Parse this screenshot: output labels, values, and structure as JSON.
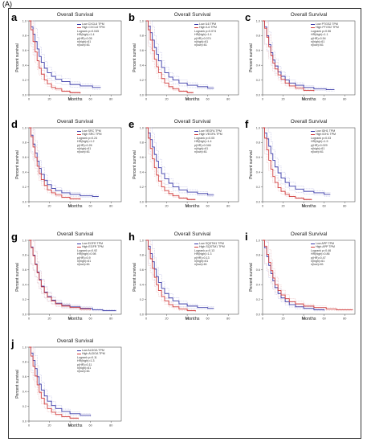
{
  "figure_label": "(A)",
  "colors": {
    "low": "#3a3aa8",
    "high": "#d03a3a",
    "ci_low": "#b8b8e0",
    "ci_high": "#e8b8b8"
  },
  "chart_data": [
    {
      "panel": "a",
      "type": "line",
      "title": "Overall Survival",
      "xlabel": "Months",
      "ylabel": "Percent survival",
      "xlim": [
        0,
        90
      ],
      "ylim": [
        0,
        1.0
      ],
      "xticks": [
        0,
        20,
        40,
        60,
        80
      ],
      "yticks": [
        0.0,
        0.2,
        0.4,
        0.6,
        0.8,
        1.0
      ],
      "legend": [
        "Low CXCL8 TPM",
        "High CXCL8 TPM",
        "Logrank p=0.045",
        "HR(high)=1.4",
        "p(HR)=0.05",
        "n(high)=61",
        "n(low)=61"
      ],
      "series": [
        {
          "name": "Low CXCL8 TPM",
          "x": [
            0,
            2,
            4,
            6,
            8,
            10,
            12,
            15,
            18,
            22,
            26,
            32,
            40,
            50,
            62,
            70
          ],
          "y": [
            1.0,
            0.92,
            0.82,
            0.72,
            0.62,
            0.52,
            0.44,
            0.36,
            0.3,
            0.25,
            0.21,
            0.18,
            0.14,
            0.12,
            0.1,
            0.1
          ]
        },
        {
          "name": "High CXCL8 TPM",
          "x": [
            0,
            2,
            4,
            6,
            8,
            10,
            12,
            15,
            18,
            22,
            26,
            32,
            40,
            50
          ],
          "y": [
            1.0,
            0.88,
            0.72,
            0.58,
            0.46,
            0.36,
            0.28,
            0.2,
            0.15,
            0.1,
            0.08,
            0.05,
            0.03,
            0.02
          ]
        }
      ]
    },
    {
      "panel": "b",
      "type": "line",
      "title": "Overall Survival",
      "xlabel": "Months",
      "ylabel": "Percent survival",
      "xlim": [
        0,
        90
      ],
      "ylim": [
        0,
        1.0
      ],
      "xticks": [
        0,
        20,
        40,
        60,
        80
      ],
      "yticks": [
        0.0,
        0.2,
        0.4,
        0.6,
        0.8,
        1.0
      ],
      "legend": [
        "Low IL6 TPM",
        "High IL6 TPM",
        "Logrank p=0.074",
        "HR(high)=1.4",
        "p(HR)=0.074",
        "n(high)=61",
        "n(low)=61"
      ],
      "series": [
        {
          "name": "Low IL6 TPM",
          "x": [
            0,
            2,
            4,
            6,
            8,
            10,
            12,
            15,
            18,
            22,
            26,
            32,
            40,
            50,
            60,
            66
          ],
          "y": [
            1.0,
            0.93,
            0.84,
            0.74,
            0.64,
            0.55,
            0.46,
            0.37,
            0.3,
            0.24,
            0.2,
            0.16,
            0.13,
            0.11,
            0.09,
            0.09
          ]
        },
        {
          "name": "High IL6 TPM",
          "x": [
            0,
            2,
            4,
            6,
            8,
            10,
            12,
            15,
            18,
            22,
            26,
            32,
            40,
            46
          ],
          "y": [
            1.0,
            0.88,
            0.74,
            0.6,
            0.48,
            0.38,
            0.3,
            0.22,
            0.16,
            0.11,
            0.08,
            0.05,
            0.03,
            0.03
          ]
        }
      ]
    },
    {
      "panel": "c",
      "type": "line",
      "title": "Overall Survival",
      "xlabel": "Months",
      "ylabel": "Percent survival",
      "xlim": [
        0,
        90
      ],
      "ylim": [
        0,
        1.0
      ],
      "xticks": [
        0,
        20,
        40,
        60,
        80
      ],
      "yticks": [
        0.0,
        0.2,
        0.4,
        0.6,
        0.8,
        1.0
      ],
      "legend": [
        "Low PTGS2 TPM",
        "High PTGS2 TPM",
        "Logrank p=0.56",
        "HR(high)=1.1",
        "p(HR)=0.54",
        "n(high)=61",
        "n(low)=61"
      ],
      "series": [
        {
          "name": "Low PTGS2 TPM",
          "x": [
            0,
            2,
            4,
            6,
            8,
            10,
            12,
            15,
            18,
            22,
            26,
            32,
            40,
            50,
            62,
            70
          ],
          "y": [
            1.0,
            0.92,
            0.8,
            0.68,
            0.57,
            0.47,
            0.39,
            0.31,
            0.25,
            0.2,
            0.16,
            0.13,
            0.1,
            0.08,
            0.07,
            0.07
          ]
        },
        {
          "name": "High PTGS2 TPM",
          "x": [
            0,
            2,
            4,
            6,
            8,
            10,
            12,
            15,
            18,
            22,
            26,
            32,
            40,
            50
          ],
          "y": [
            1.0,
            0.9,
            0.78,
            0.65,
            0.53,
            0.43,
            0.35,
            0.27,
            0.21,
            0.16,
            0.12,
            0.09,
            0.06,
            0.05
          ]
        }
      ]
    },
    {
      "panel": "d",
      "type": "line",
      "title": "Overall Survival",
      "xlabel": "Months",
      "ylabel": "Percent survival",
      "xlim": [
        0,
        90
      ],
      "ylim": [
        0,
        1.0
      ],
      "xticks": [
        0,
        20,
        40,
        60,
        80
      ],
      "yticks": [
        0.0,
        0.2,
        0.4,
        0.6,
        0.8,
        1.0
      ],
      "legend": [
        "Low SRC TPM",
        "High SRC TPM",
        "Logrank p=0.24",
        "HR(high)=1.2",
        "p(HR)=0.26",
        "n(high)=61",
        "n(low)=61"
      ],
      "series": [
        {
          "name": "Low SRC TPM",
          "x": [
            0,
            2,
            4,
            6,
            8,
            10,
            12,
            15,
            18,
            22,
            26,
            32,
            40,
            50,
            62,
            68
          ],
          "y": [
            1.0,
            0.9,
            0.78,
            0.66,
            0.55,
            0.45,
            0.37,
            0.29,
            0.23,
            0.18,
            0.15,
            0.12,
            0.1,
            0.08,
            0.07,
            0.07
          ]
        },
        {
          "name": "High SRC TPM",
          "x": [
            0,
            2,
            4,
            6,
            8,
            10,
            12,
            15,
            18,
            22,
            26,
            32,
            40,
            50
          ],
          "y": [
            1.0,
            0.88,
            0.74,
            0.6,
            0.48,
            0.38,
            0.3,
            0.22,
            0.16,
            0.12,
            0.09,
            0.06,
            0.04,
            0.03
          ]
        }
      ]
    },
    {
      "panel": "e",
      "type": "line",
      "title": "Overall Survival",
      "xlabel": "Months",
      "ylabel": "Percent survival",
      "xlim": [
        0,
        90
      ],
      "ylim": [
        0,
        1.0
      ],
      "xticks": [
        0,
        20,
        40,
        60,
        80
      ],
      "yticks": [
        0.0,
        0.2,
        0.4,
        0.6,
        0.8,
        1.0
      ],
      "legend": [
        "Low VEGFA TPM",
        "High VEGFA TPM",
        "Logrank p=0.05",
        "HR(high)=1.4",
        "p(HR)=0.046",
        "n(high)=61",
        "n(low)=61"
      ],
      "series": [
        {
          "name": "Low VEGFA TPM",
          "x": [
            0,
            2,
            4,
            6,
            8,
            10,
            12,
            15,
            18,
            22,
            26,
            32,
            40,
            50,
            60,
            66
          ],
          "y": [
            1.0,
            0.93,
            0.84,
            0.74,
            0.64,
            0.55,
            0.46,
            0.38,
            0.31,
            0.25,
            0.2,
            0.16,
            0.13,
            0.11,
            0.09,
            0.09
          ]
        },
        {
          "name": "High VEGFA TPM",
          "x": [
            0,
            2,
            4,
            6,
            8,
            10,
            12,
            15,
            18,
            22,
            26,
            32,
            40,
            48
          ],
          "y": [
            1.0,
            0.86,
            0.72,
            0.58,
            0.46,
            0.36,
            0.28,
            0.2,
            0.15,
            0.11,
            0.08,
            0.05,
            0.03,
            0.03
          ]
        }
      ]
    },
    {
      "panel": "f",
      "type": "line",
      "title": "Overall Survival",
      "xlabel": "Months",
      "ylabel": "Percent survival",
      "xlim": [
        0,
        90
      ],
      "ylim": [
        0,
        1.0
      ],
      "xticks": [
        0,
        20,
        40,
        60,
        80
      ],
      "yticks": [
        0.0,
        0.2,
        0.4,
        0.6,
        0.8,
        1.0
      ],
      "legend": [
        "Low IDH1 TPM",
        "High IDH1 TPM",
        "Logrank p=0.03",
        "HR(high)=1.5",
        "p(HR)=0.029",
        "n(high)=61",
        "n(low)=61"
      ],
      "series": [
        {
          "name": "Low IDH1 TPM",
          "x": [
            0,
            2,
            4,
            6,
            8,
            10,
            12,
            15,
            18,
            22,
            26,
            32,
            40,
            50,
            60,
            66
          ],
          "y": [
            1.0,
            0.93,
            0.85,
            0.75,
            0.65,
            0.56,
            0.47,
            0.39,
            0.32,
            0.26,
            0.21,
            0.17,
            0.14,
            0.12,
            0.1,
            0.1
          ]
        },
        {
          "name": "High IDH1 TPM",
          "x": [
            0,
            2,
            4,
            6,
            8,
            10,
            12,
            15,
            18,
            22,
            26,
            32,
            40,
            48
          ],
          "y": [
            1.0,
            0.86,
            0.7,
            0.56,
            0.44,
            0.34,
            0.26,
            0.19,
            0.14,
            0.1,
            0.07,
            0.05,
            0.03,
            0.03
          ]
        }
      ]
    },
    {
      "panel": "g",
      "type": "line",
      "title": "Overall Survival",
      "xlabel": "Months",
      "ylabel": "Percent survival",
      "xlim": [
        0,
        90
      ],
      "ylim": [
        0,
        1.0
      ],
      "xticks": [
        0,
        20,
        40,
        60,
        80
      ],
      "yticks": [
        0.0,
        0.2,
        0.4,
        0.6,
        0.8,
        1.0
      ],
      "legend": [
        "Low EGFR TPM",
        "High EGFR TPM",
        "Logrank p=0.92",
        "HR(high)=0.98",
        "p(HR)=0.9",
        "n(high)=61",
        "n(low)=61"
      ],
      "series": [
        {
          "name": "Low EGFR TPM",
          "x": [
            0,
            2,
            4,
            6,
            8,
            10,
            12,
            15,
            18,
            22,
            26,
            32,
            40,
            50,
            62,
            72,
            85
          ],
          "y": [
            1.0,
            0.91,
            0.8,
            0.68,
            0.57,
            0.47,
            0.38,
            0.3,
            0.24,
            0.19,
            0.15,
            0.12,
            0.1,
            0.08,
            0.06,
            0.05,
            0.05
          ]
        },
        {
          "name": "High EGFR TPM",
          "x": [
            0,
            2,
            4,
            6,
            8,
            10,
            12,
            15,
            18,
            22,
            26,
            32,
            40,
            50,
            60
          ],
          "y": [
            1.0,
            0.9,
            0.79,
            0.67,
            0.56,
            0.46,
            0.37,
            0.29,
            0.23,
            0.18,
            0.14,
            0.11,
            0.09,
            0.07,
            0.06
          ]
        }
      ]
    },
    {
      "panel": "h",
      "type": "line",
      "title": "Overall Survival",
      "xlabel": "Months",
      "ylabel": "Percent survival",
      "xlim": [
        0,
        90
      ],
      "ylim": [
        0,
        1.0
      ],
      "xticks": [
        0,
        20,
        40,
        60,
        80
      ],
      "yticks": [
        0.0,
        0.2,
        0.4,
        0.6,
        0.8,
        1.0
      ],
      "legend": [
        "Low SQSTM1 TPM",
        "High SQSTM1 TPM",
        "Logrank p=0.13",
        "HR(high)=1.3",
        "p(HR)=0.13",
        "n(high)=61",
        "n(low)=61"
      ],
      "series": [
        {
          "name": "Low SQSTM1 TPM",
          "x": [
            0,
            2,
            4,
            6,
            8,
            10,
            12,
            15,
            18,
            22,
            26,
            32,
            40,
            50,
            60,
            66
          ],
          "y": [
            1.0,
            0.92,
            0.82,
            0.71,
            0.61,
            0.51,
            0.43,
            0.35,
            0.28,
            0.22,
            0.18,
            0.14,
            0.11,
            0.09,
            0.08,
            0.08
          ]
        },
        {
          "name": "High SQSTM1 TPM",
          "x": [
            0,
            2,
            4,
            6,
            8,
            10,
            12,
            15,
            18,
            22,
            26,
            32,
            40,
            48
          ],
          "y": [
            1.0,
            0.88,
            0.75,
            0.62,
            0.5,
            0.4,
            0.32,
            0.24,
            0.18,
            0.13,
            0.1,
            0.07,
            0.05,
            0.04
          ]
        }
      ]
    },
    {
      "panel": "i",
      "type": "line",
      "title": "Overall Survival",
      "xlabel": "Months",
      "ylabel": "Percent survival",
      "xlim": [
        0,
        90
      ],
      "ylim": [
        0,
        1.0
      ],
      "xticks": [
        0,
        20,
        40,
        60,
        80
      ],
      "yticks": [
        0.0,
        0.2,
        0.4,
        0.6,
        0.8,
        1.0
      ],
      "legend": [
        "Low APP TPM",
        "High APP TPM",
        "Logrank p=0.46",
        "HR(high)=0.86",
        "p(HR)=0.47",
        "n(high)=61",
        "n(low)=61"
      ],
      "series": [
        {
          "name": "Low APP TPM",
          "x": [
            0,
            2,
            4,
            6,
            8,
            10,
            12,
            15,
            18,
            22,
            26,
            32,
            40,
            50,
            60
          ],
          "y": [
            1.0,
            0.9,
            0.78,
            0.66,
            0.55,
            0.45,
            0.36,
            0.28,
            0.22,
            0.17,
            0.13,
            0.1,
            0.08,
            0.06,
            0.05
          ]
        },
        {
          "name": "High APP TPM",
          "x": [
            0,
            2,
            4,
            6,
            8,
            10,
            12,
            15,
            18,
            22,
            26,
            32,
            40,
            50,
            62,
            72,
            88
          ],
          "y": [
            1.0,
            0.92,
            0.81,
            0.7,
            0.59,
            0.49,
            0.4,
            0.32,
            0.26,
            0.21,
            0.17,
            0.14,
            0.11,
            0.09,
            0.07,
            0.06,
            0.06
          ]
        }
      ]
    },
    {
      "panel": "j",
      "type": "line",
      "title": "Overall Survival",
      "xlabel": "Months",
      "ylabel": "Percent survival",
      "xlim": [
        0,
        90
      ],
      "ylim": [
        0,
        1.0
      ],
      "xticks": [
        0,
        20,
        40,
        60,
        80
      ],
      "yticks": [
        0.0,
        0.2,
        0.4,
        0.6,
        0.8,
        1.0
      ],
      "legend": [
        "Low ALDOA TPM",
        "High ALDOA TPM",
        "Logrank p=0.11",
        "HR(high)=1.3",
        "p(HR)=0.11",
        "n(high)=61",
        "n(low)=61"
      ],
      "series": [
        {
          "name": "Low ALDOA TPM",
          "x": [
            0,
            2,
            4,
            6,
            8,
            10,
            12,
            15,
            18,
            22,
            26,
            32,
            40,
            50,
            60
          ],
          "y": [
            1.0,
            0.92,
            0.82,
            0.71,
            0.6,
            0.5,
            0.42,
            0.34,
            0.27,
            0.21,
            0.17,
            0.13,
            0.1,
            0.08,
            0.07
          ]
        },
        {
          "name": "High ALDOA TPM",
          "x": [
            0,
            2,
            4,
            6,
            8,
            10,
            12,
            15,
            18,
            22,
            26,
            32,
            40,
            48
          ],
          "y": [
            1.0,
            0.88,
            0.74,
            0.61,
            0.49,
            0.39,
            0.31,
            0.23,
            0.17,
            0.12,
            0.09,
            0.06,
            0.04,
            0.03
          ]
        }
      ]
    }
  ]
}
